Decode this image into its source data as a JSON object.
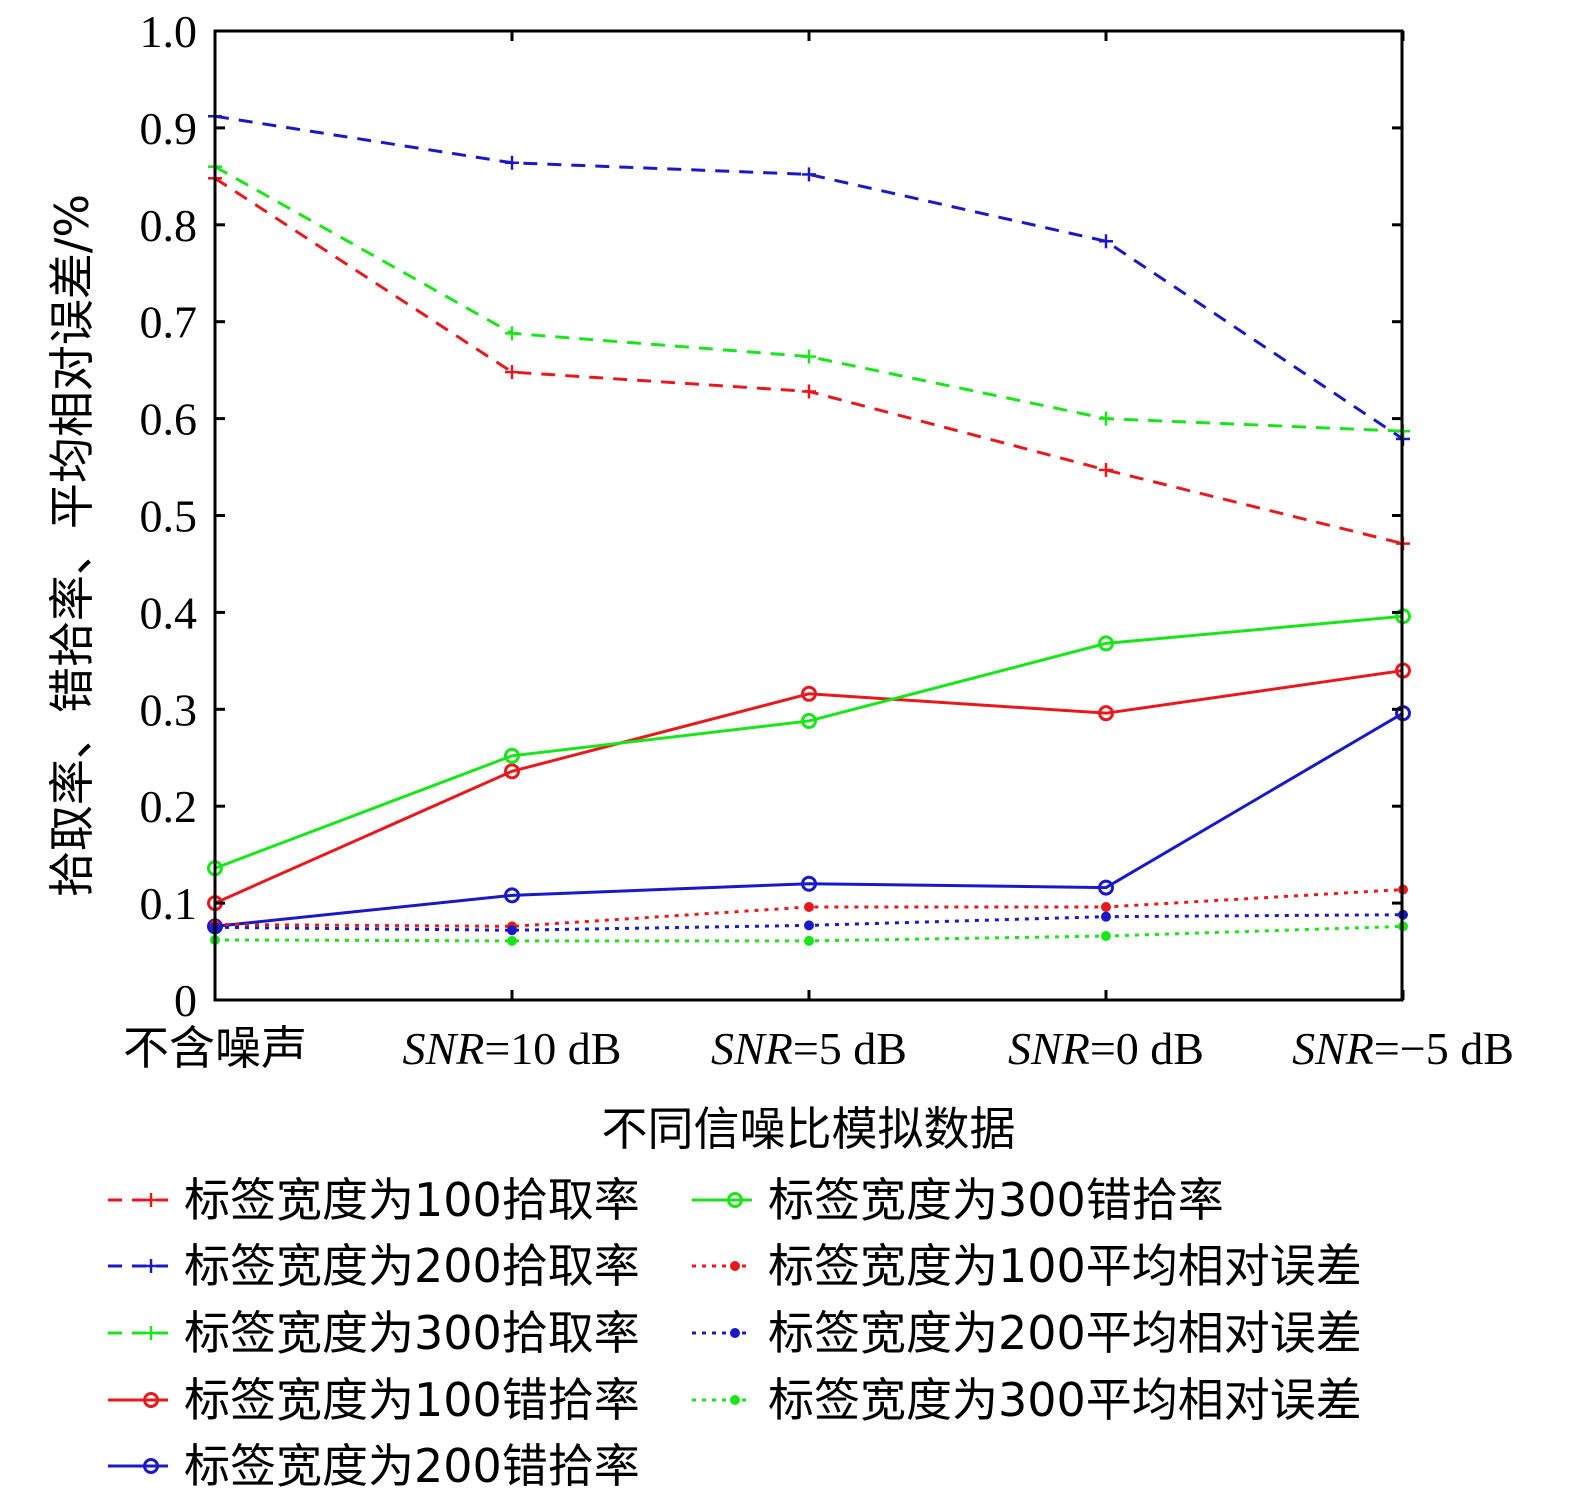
{
  "chart_data": {
    "type": "line",
    "title": "",
    "xlabel": "不同信噪比模拟数据",
    "ylabel": "拾取率、错拾率、平均相对误差/%",
    "categories": [
      {
        "italic": "",
        "rest": "不含噪声"
      },
      {
        "italic": "SNR",
        "rest": "=10 dB"
      },
      {
        "italic": "SNR",
        "rest": "=5 dB"
      },
      {
        "italic": "SNR",
        "rest": "=0 dB"
      },
      {
        "italic": "SNR",
        "rest": "=−5 dB"
      }
    ],
    "ylim": [
      0,
      1.0
    ],
    "yticks": [
      "0",
      "0.1",
      "0.2",
      "0.3",
      "0.4",
      "0.5",
      "0.6",
      "0.7",
      "0.8",
      "0.9",
      "1.0"
    ],
    "grid": false,
    "legend_position": "bottom",
    "series": [
      {
        "name": "标签宽度为100拾取率",
        "color": "#e8191c",
        "dash": "dashed",
        "marker": "plus",
        "values": [
          0.848,
          0.648,
          0.628,
          0.547,
          0.471
        ]
      },
      {
        "name": "标签宽度为200拾取率",
        "color": "#1919c8",
        "dash": "dashed",
        "marker": "plus",
        "values": [
          0.912,
          0.864,
          0.852,
          0.783,
          0.579
        ]
      },
      {
        "name": "标签宽度为300拾取率",
        "color": "#19e619",
        "dash": "dashed",
        "marker": "plus",
        "values": [
          0.86,
          0.688,
          0.664,
          0.6,
          0.587
        ]
      },
      {
        "name": "标签宽度为100错拾率",
        "color": "#e8191c",
        "dash": "solid",
        "marker": "circle",
        "values": [
          0.1,
          0.236,
          0.316,
          0.296,
          0.34
        ]
      },
      {
        "name": "标签宽度为200错拾率",
        "color": "#1919c8",
        "dash": "solid",
        "marker": "circle",
        "values": [
          0.076,
          0.108,
          0.12,
          0.116,
          0.296
        ]
      },
      {
        "name": "标签宽度为300错拾率",
        "color": "#19e619",
        "dash": "solid",
        "marker": "circle",
        "values": [
          0.136,
          0.252,
          0.288,
          0.368,
          0.396
        ]
      },
      {
        "name": "标签宽度为100平均相对误差",
        "color": "#e8191c",
        "dash": "dotted",
        "marker": "dot",
        "values": [
          0.078,
          0.076,
          0.096,
          0.096,
          0.114
        ]
      },
      {
        "name": "标签宽度为200平均相对误差",
        "color": "#1919c8",
        "dash": "dotted",
        "marker": "dot",
        "values": [
          0.075,
          0.072,
          0.077,
          0.086,
          0.088
        ]
      },
      {
        "name": "标签宽度为300平均相对误差",
        "color": "#19e619",
        "dash": "dotted",
        "marker": "dot",
        "values": [
          0.062,
          0.061,
          0.061,
          0.066,
          0.076
        ]
      }
    ]
  }
}
